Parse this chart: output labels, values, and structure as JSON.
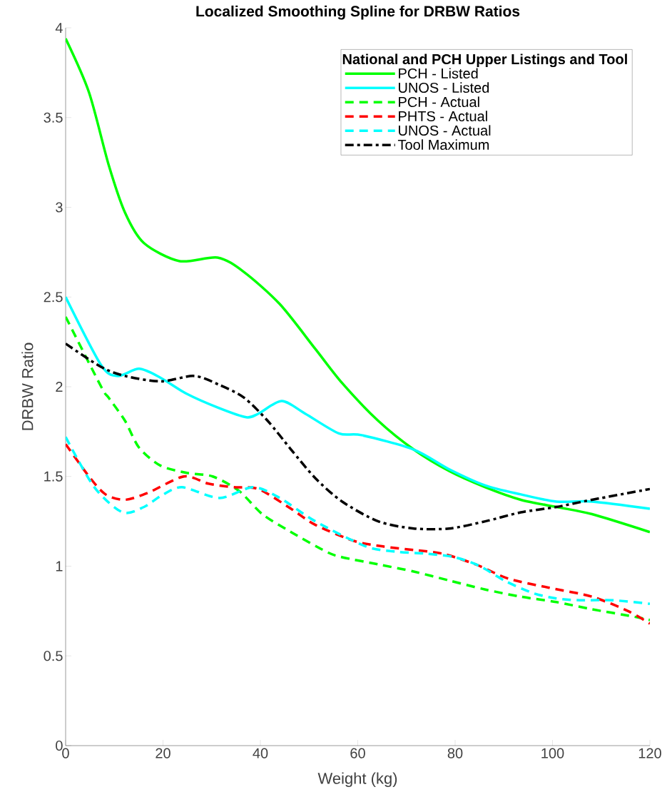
{
  "chart_data": {
    "type": "line",
    "title": "Localized Smoothing Spline for DRBW Ratios",
    "xlabel": "Weight (kg)",
    "ylabel": "DRBW Ratio",
    "legend_title": "National and PCH Upper Listings and Tool",
    "legend": "top right",
    "grid": false,
    "xlim": [
      0,
      120
    ],
    "ylim": [
      0,
      4
    ],
    "xticks": [
      0,
      20,
      40,
      60,
      80,
      100,
      120
    ],
    "yticks": [
      0,
      0.5,
      1,
      1.5,
      2,
      2.5,
      3,
      3.5,
      4
    ],
    "series": [
      {
        "name": "PCH - Listed",
        "color": "#00ff00",
        "line_style": "solid",
        "x": [
          0,
          4.8,
          8.8,
          12.2,
          16.1,
          23.4,
          31.2,
          36.6,
          44,
          51.3,
          56.8,
          64.2,
          71.5,
          78.8,
          86.2,
          93.5,
          100.8,
          108.1,
          120
        ],
        "values": [
          3.94,
          3.64,
          3.24,
          2.97,
          2.8,
          2.7,
          2.72,
          2.64,
          2.46,
          2.21,
          2.02,
          1.81,
          1.65,
          1.53,
          1.44,
          1.37,
          1.33,
          1.29,
          1.19
        ]
      },
      {
        "name": "UNOS - Listed",
        "color": "#00ffff",
        "line_style": "solid",
        "x": [
          0,
          7.3,
          10.7,
          15.1,
          19.5,
          24.9,
          31.6,
          37.1,
          39.6,
          44.4,
          49.2,
          56.1,
          60.8,
          71.5,
          78.8,
          86.2,
          93.5,
          100.8,
          108.1,
          120
        ],
        "values": [
          2.5,
          2.12,
          2.06,
          2.1,
          2.05,
          1.96,
          1.88,
          1.83,
          1.85,
          1.92,
          1.85,
          1.74,
          1.73,
          1.65,
          1.54,
          1.45,
          1.4,
          1.36,
          1.36,
          1.32
        ]
      },
      {
        "name": "PCH - Actual",
        "color": "#00ff00",
        "line_style": "dashed",
        "x": [
          0,
          7.3,
          8.8,
          12.2,
          15.1,
          19.5,
          24.9,
          30.2,
          35.6,
          40.4,
          46.3,
          53.6,
          56.8,
          64.2,
          71.5,
          78.8,
          86.2,
          93.5,
          100.8,
          108.1,
          116.5,
          120
        ],
        "values": [
          2.39,
          2.0,
          1.94,
          1.81,
          1.66,
          1.56,
          1.52,
          1.5,
          1.42,
          1.29,
          1.19,
          1.08,
          1.05,
          1.01,
          0.97,
          0.92,
          0.87,
          0.83,
          0.8,
          0.76,
          0.72,
          0.7
        ]
      },
      {
        "name": "PHTS - Actual",
        "color": "#ff0000",
        "line_style": "dashed",
        "x": [
          0,
          4.8,
          8.2,
          12.2,
          17,
          24.3,
          29.3,
          34.6,
          39.6,
          46.3,
          51.3,
          59.3,
          65.2,
          71.5,
          77.4,
          84.2,
          91,
          99.3,
          108.1,
          115.5,
          120
        ],
        "values": [
          1.68,
          1.5,
          1.4,
          1.37,
          1.41,
          1.5,
          1.46,
          1.44,
          1.43,
          1.32,
          1.23,
          1.14,
          1.11,
          1.09,
          1.07,
          1.01,
          0.93,
          0.88,
          0.83,
          0.75,
          0.68
        ]
      },
      {
        "name": "UNOS - Actual",
        "color": "#00ffff",
        "line_style": "dashed",
        "x": [
          0,
          5.9,
          11.7,
          16.1,
          19.5,
          23.9,
          31.6,
          38.5,
          44,
          51.3,
          61.7,
          68.1,
          74,
          79.9,
          85.1,
          90.1,
          96,
          100.8,
          105.6,
          112.5,
          120
        ],
        "values": [
          1.72,
          1.44,
          1.3,
          1.33,
          1.39,
          1.44,
          1.38,
          1.44,
          1.38,
          1.25,
          1.11,
          1.08,
          1.07,
          1.05,
          1.0,
          0.92,
          0.85,
          0.82,
          0.81,
          0.81,
          0.79
        ]
      },
      {
        "name": "Tool Maximum",
        "color": "#000000",
        "line_style": "dashdot",
        "x": [
          0,
          7.3,
          12.2,
          19.5,
          26.4,
          31.6,
          36.6,
          41.5,
          46.3,
          51.3,
          56.8,
          64.2,
          71.5,
          78.8,
          86.2,
          93.5,
          100.8,
          108.1,
          120
        ],
        "values": [
          2.24,
          2.11,
          2.06,
          2.03,
          2.06,
          2.01,
          1.94,
          1.81,
          1.65,
          1.49,
          1.36,
          1.25,
          1.21,
          1.21,
          1.25,
          1.3,
          1.33,
          1.37,
          1.43
        ]
      }
    ]
  }
}
